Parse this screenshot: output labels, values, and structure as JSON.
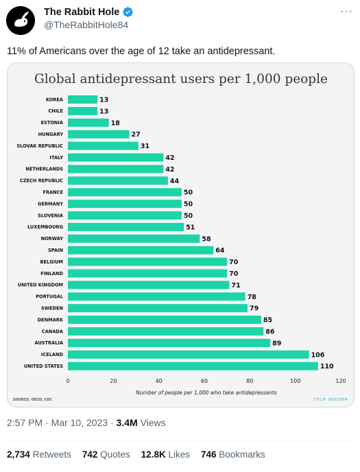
{
  "tweet": {
    "author_name": "The Rabbit Hole",
    "author_handle": "@TheRabbitHole84",
    "verified": true,
    "text": "11% of Americans over the age of 12 take an antidepressant.",
    "time": "2:57 PM",
    "date": "Mar 10, 2023",
    "separator": "·",
    "views_count": "3.4M",
    "views_label": "Views",
    "stats": [
      {
        "count": "2,734",
        "label": "Retweets"
      },
      {
        "count": "742",
        "label": "Quotes"
      },
      {
        "count": "12.8K",
        "label": "Likes"
      },
      {
        "count": "746",
        "label": "Bookmarks"
      }
    ]
  },
  "colors": {
    "bar": "#1cd4a7",
    "chart_bg": "#f4f4f4",
    "text": "#0f1419",
    "muted": "#536471",
    "verified": "#1d9bf0"
  },
  "chart_data": {
    "type": "bar",
    "orientation": "horizontal",
    "title": "Global antidepressant users per 1,000 people",
    "xlabel": "Number of people per 1,000 who take antidepressants",
    "ylabel": "",
    "xlim": [
      0,
      120
    ],
    "xticks": [
      "0",
      "20",
      "40",
      "60",
      "80",
      "100",
      "120"
    ],
    "categories": [
      "KOREA",
      "CHILE",
      "ESTONIA",
      "HUNGARY",
      "SLOVAK REPUBLIC",
      "ITALY",
      "NETHERLANDS",
      "CZECH REPUBLIC",
      "FRANCE",
      "GERMANY",
      "SLOVENIA",
      "LUXEMBOURG",
      "NORWAY",
      "SPAIN",
      "BELGIUM",
      "FINLAND",
      "UNITED KINGDOM",
      "PORTUGAL",
      "SWEDEN",
      "DENMARK",
      "CANADA",
      "AUSTRALIA",
      "ICELAND",
      "UNITED STATES"
    ],
    "values": [
      13,
      13,
      18,
      27,
      31,
      42,
      42,
      44,
      50,
      50,
      50,
      51,
      58,
      64,
      70,
      70,
      71,
      78,
      79,
      85,
      86,
      89,
      106,
      110
    ],
    "source": "SOURCE: OECD, CDC",
    "logo_text": "TECH INSIDER",
    "grid": false
  }
}
